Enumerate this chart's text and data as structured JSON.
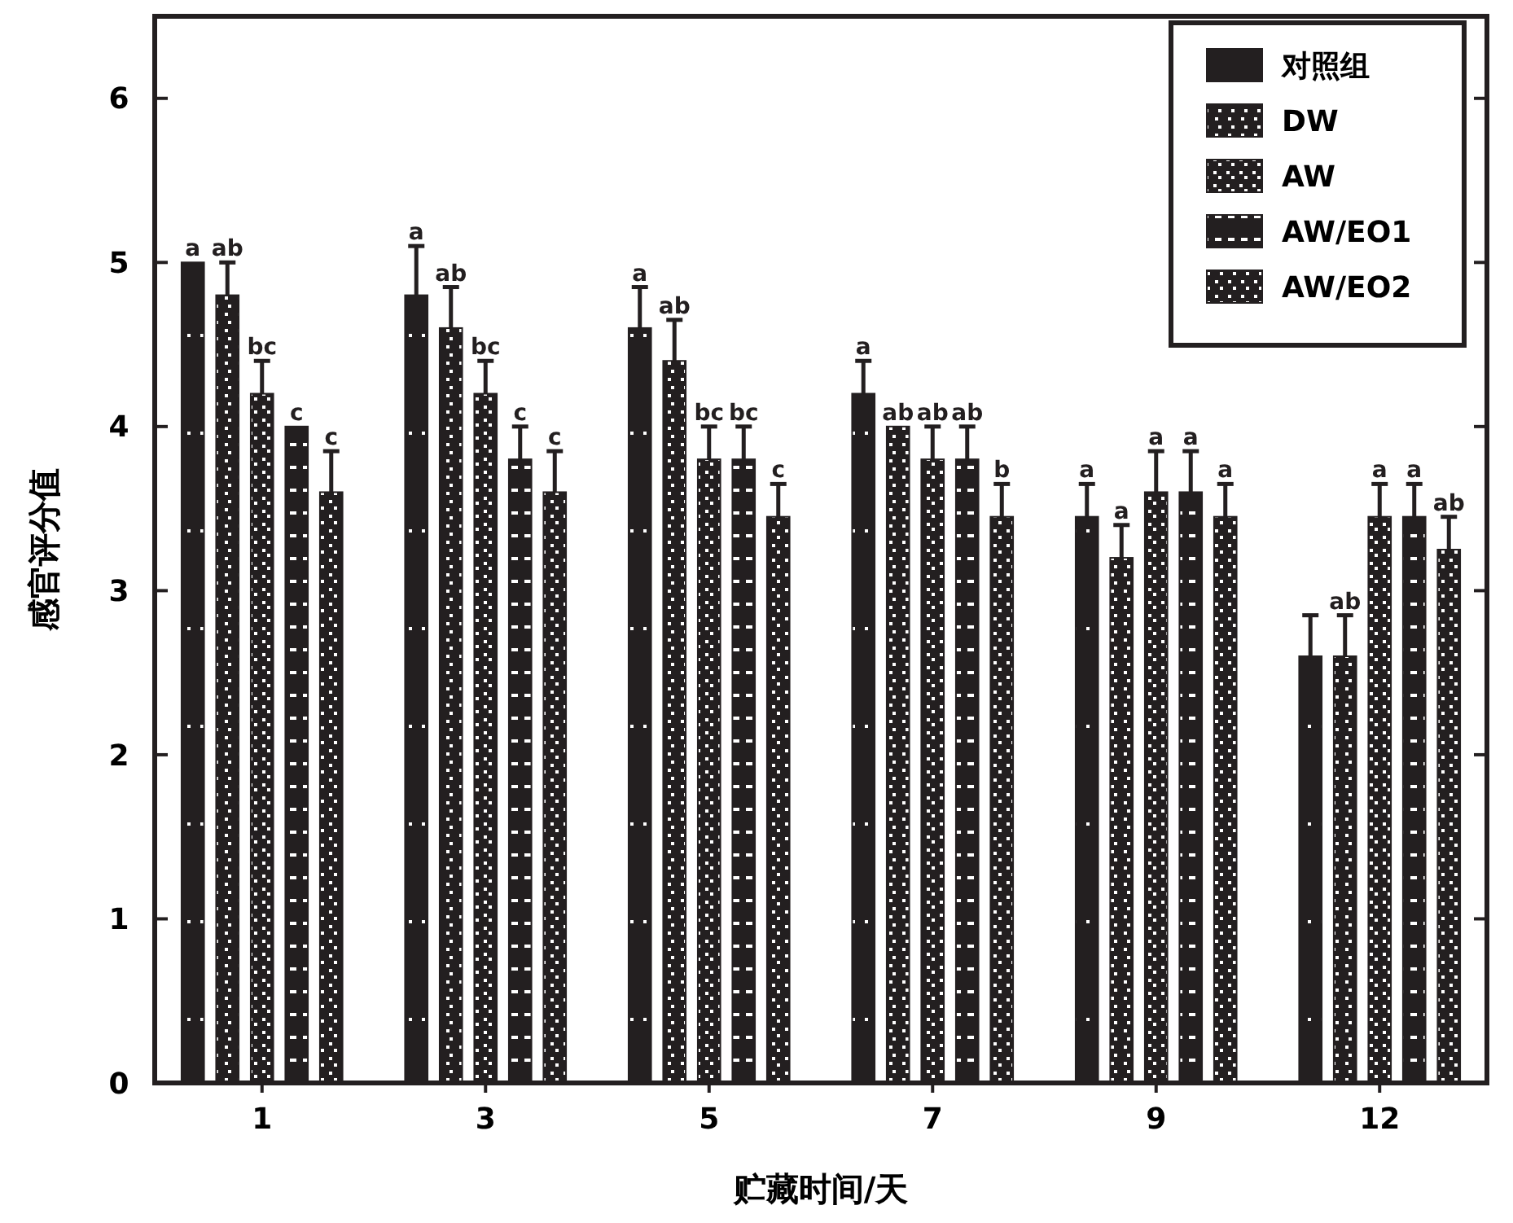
{
  "chart_data": {
    "type": "bar",
    "xlabel": "贮藏时间/天",
    "ylabel": "感官评分值",
    "categories": [
      "1",
      "3",
      "5",
      "7",
      "9",
      "12"
    ],
    "ylim": [
      0,
      6.5
    ],
    "yticks": [
      0,
      1,
      2,
      3,
      4,
      5,
      6
    ],
    "grid": false,
    "legend": "top right",
    "series": [
      {
        "name": "对照组",
        "color": "#231f20",
        "values": [
          5.0,
          4.8,
          4.6,
          4.2,
          3.45,
          2.6
        ],
        "errors": [
          null,
          0.3,
          0.25,
          0.2,
          0.2,
          0.25
        ],
        "value_labels": [
          "a",
          "a",
          "a",
          "a",
          "a",
          null
        ]
      },
      {
        "name": "DW",
        "color": "#231f20",
        "values": [
          4.8,
          4.6,
          4.4,
          4.0,
          3.2,
          2.6
        ],
        "errors": [
          0.2,
          0.25,
          0.25,
          null,
          0.2,
          0.25
        ],
        "value_labels": [
          "ab",
          "ab",
          "ab",
          "ab",
          "a",
          "ab"
        ]
      },
      {
        "name": "AW",
        "color": "#231f20",
        "values": [
          4.2,
          4.2,
          3.8,
          3.8,
          3.6,
          3.45
        ],
        "errors": [
          0.2,
          0.2,
          0.2,
          0.2,
          0.25,
          0.2
        ],
        "value_labels": [
          "bc",
          "bc",
          "bc",
          "ab",
          "a",
          "a"
        ]
      },
      {
        "name": "AW/EO1",
        "color": "#231f20",
        "values": [
          4.0,
          3.8,
          3.8,
          3.8,
          3.6,
          3.45
        ],
        "errors": [
          null,
          0.2,
          0.2,
          0.2,
          0.25,
          0.2
        ],
        "value_labels": [
          "c",
          "c",
          "bc",
          "ab",
          "a",
          "a"
        ]
      },
      {
        "name": "AW/EO2",
        "color": "#231f20",
        "values": [
          3.6,
          3.6,
          3.45,
          3.45,
          3.45,
          3.25
        ],
        "errors": [
          0.25,
          0.25,
          0.2,
          0.2,
          0.2,
          0.2
        ],
        "value_labels": [
          "c",
          "c",
          "c",
          "b",
          "a",
          "ab"
        ]
      }
    ]
  }
}
